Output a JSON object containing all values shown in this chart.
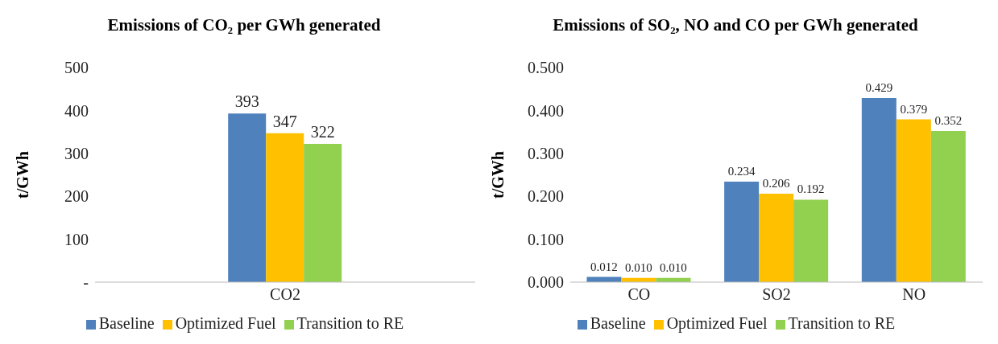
{
  "chart_data": [
    {
      "type": "bar",
      "title": "Emissions of CO₂ per GWh generated",
      "ylabel": "t/GWh",
      "categories": [
        "CO2"
      ],
      "series": [
        {
          "name": "Baseline",
          "color": "#4f81bd",
          "values": [
            393
          ]
        },
        {
          "name": "Optimized Fuel",
          "color": "#ffc000",
          "values": [
            347
          ]
        },
        {
          "name": "Transition to RE",
          "color": "#92d050",
          "values": [
            322
          ]
        }
      ],
      "ylim": [
        0,
        500
      ],
      "yticks": [
        {
          "value": 0,
          "label": "-"
        },
        100,
        200,
        300,
        400,
        500
      ],
      "data_labels": true,
      "legend": "bottom"
    },
    {
      "type": "bar",
      "title": "Emissions of SO₂, NO and CO per GWh generated",
      "ylabel": "t/GWh",
      "categories": [
        "CO",
        "SO2",
        "NO"
      ],
      "series": [
        {
          "name": "Baseline",
          "color": "#4f81bd",
          "values": [
            0.012,
            0.234,
            0.429
          ],
          "value_labels": [
            "0.012",
            "0.234",
            "0.429"
          ]
        },
        {
          "name": "Optimized Fuel",
          "color": "#ffc000",
          "values": [
            0.01,
            0.206,
            0.379
          ],
          "value_labels": [
            "0.010",
            "0.206",
            "0.379"
          ]
        },
        {
          "name": "Transition to RE",
          "color": "#92d050",
          "values": [
            0.01,
            0.192,
            0.352
          ],
          "value_labels": [
            "0.010",
            "0.192",
            "0.352"
          ]
        }
      ],
      "ylim": [
        0,
        0.5
      ],
      "yticks": [
        {
          "value": 0,
          "label": "0.000"
        },
        {
          "value": 0.1,
          "label": "0.100"
        },
        {
          "value": 0.2,
          "label": "0.200"
        },
        {
          "value": 0.3,
          "label": "0.300"
        },
        {
          "value": 0.4,
          "label": "0.400"
        },
        {
          "value": 0.5,
          "label": "0.500"
        }
      ],
      "legend": "bottom"
    }
  ]
}
